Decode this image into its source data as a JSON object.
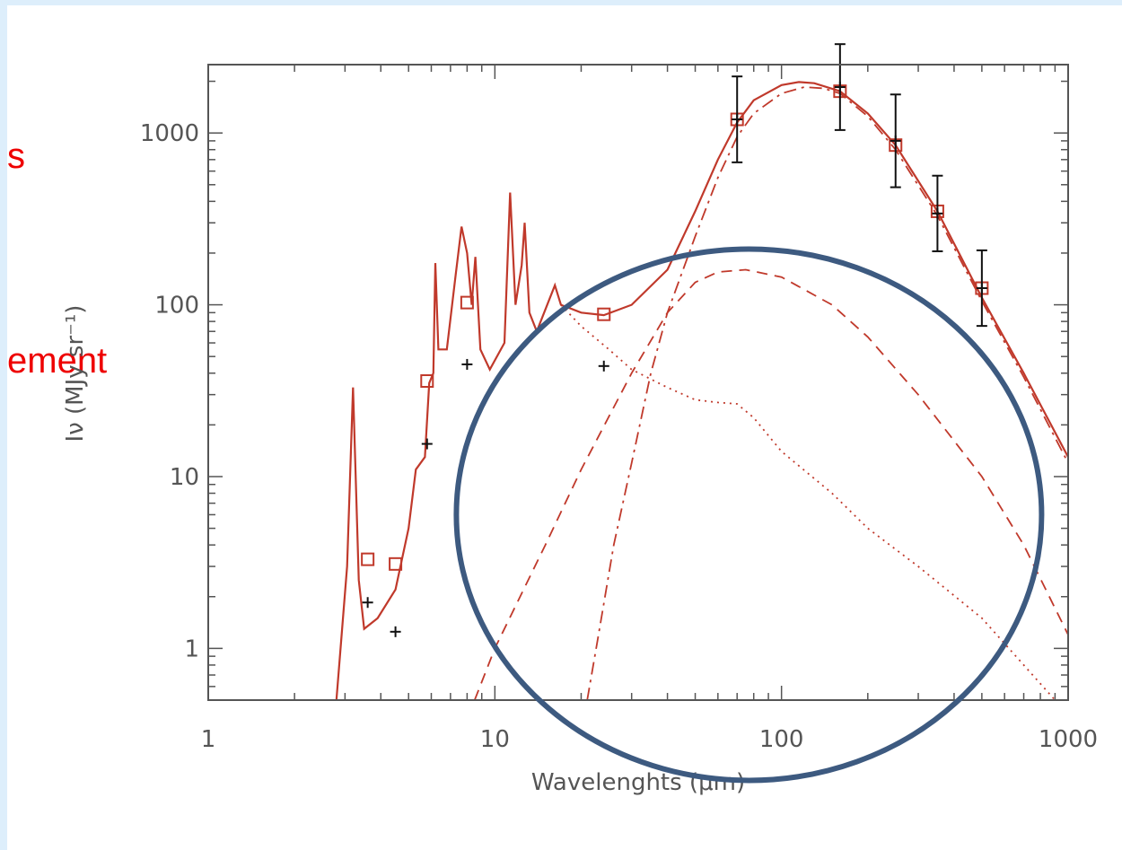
{
  "slide": {
    "text_fragment_1": "s",
    "text_fragment_2": "ement"
  },
  "chart_data": {
    "type": "line",
    "xlabel": "Wavelenghts (μm)",
    "ylabel": "Iν (MJy sr⁻¹)",
    "x_scale": "log",
    "y_scale": "log",
    "xlim": [
      1,
      1000
    ],
    "ylim": [
      0.5,
      2500
    ],
    "x_ticks": [
      {
        "value": 1,
        "label": "1"
      },
      {
        "value": 10,
        "label": "10"
      },
      {
        "value": 100,
        "label": "100"
      },
      {
        "value": 1000,
        "label": "1000"
      }
    ],
    "y_ticks": [
      {
        "value": 1,
        "label": "1"
      },
      {
        "value": 10,
        "label": "10"
      },
      {
        "value": 100,
        "label": "100"
      },
      {
        "value": 1000,
        "label": "1000"
      }
    ],
    "colors": {
      "model": "#c0392b",
      "observed": "#111111",
      "highlight_circle": "#3d5a80",
      "axes": "#555555"
    },
    "series": [
      {
        "style": "solid",
        "points": [
          [
            2.8,
            0.5
          ],
          [
            3.05,
            3
          ],
          [
            3.2,
            33
          ],
          [
            3.35,
            2.5
          ],
          [
            3.5,
            1.3
          ],
          [
            3.9,
            1.5
          ],
          [
            4.5,
            2.2
          ],
          [
            5,
            5
          ],
          [
            5.3,
            11
          ],
          [
            5.7,
            13
          ],
          [
            5.9,
            35
          ],
          [
            6.1,
            40
          ],
          [
            6.2,
            175
          ],
          [
            6.35,
            55
          ],
          [
            6.8,
            55
          ],
          [
            7.3,
            150
          ],
          [
            7.65,
            285
          ],
          [
            8.0,
            200
          ],
          [
            8.3,
            100
          ],
          [
            8.55,
            190
          ],
          [
            8.9,
            55
          ],
          [
            9.6,
            42
          ],
          [
            10.8,
            60
          ],
          [
            11.3,
            450
          ],
          [
            11.8,
            100
          ],
          [
            12.4,
            170
          ],
          [
            12.7,
            300
          ],
          [
            13.2,
            90
          ],
          [
            14,
            70
          ],
          [
            16.2,
            130
          ],
          [
            17,
            100
          ],
          [
            20,
            90
          ],
          [
            24,
            87
          ],
          [
            30,
            100
          ],
          [
            40,
            160
          ],
          [
            50,
            350
          ],
          [
            60,
            700
          ],
          [
            70,
            1150
          ],
          [
            80,
            1550
          ],
          [
            100,
            1900
          ],
          [
            115,
            1980
          ],
          [
            130,
            1950
          ],
          [
            160,
            1750
          ],
          [
            200,
            1300
          ],
          [
            250,
            850
          ],
          [
            350,
            350
          ],
          [
            500,
            110
          ],
          [
            700,
            40
          ],
          [
            1000,
            13
          ]
        ]
      },
      {
        "style": "dotted",
        "points": [
          [
            17,
            100
          ],
          [
            20,
            75
          ],
          [
            25,
            55
          ],
          [
            30,
            42
          ],
          [
            40,
            33
          ],
          [
            50,
            28
          ],
          [
            60,
            27
          ],
          [
            70,
            26.5
          ],
          [
            80,
            22
          ],
          [
            100,
            14
          ],
          [
            150,
            8
          ],
          [
            200,
            5
          ],
          [
            300,
            3
          ],
          [
            500,
            1.5
          ],
          [
            700,
            0.8
          ],
          [
            900,
            0.5
          ]
        ]
      },
      {
        "style": "dashed",
        "points": [
          [
            8.5,
            0.5
          ],
          [
            10,
            1
          ],
          [
            15,
            4
          ],
          [
            20,
            11
          ],
          [
            30,
            40
          ],
          [
            40,
            90
          ],
          [
            50,
            135
          ],
          [
            60,
            155
          ],
          [
            75,
            160
          ],
          [
            100,
            145
          ],
          [
            150,
            100
          ],
          [
            200,
            65
          ],
          [
            300,
            30
          ],
          [
            500,
            10
          ],
          [
            700,
            4
          ],
          [
            1000,
            1.2
          ]
        ]
      },
      {
        "style": "dashdot",
        "points": [
          [
            21,
            0.5
          ],
          [
            23,
            1.2
          ],
          [
            26,
            4
          ],
          [
            30,
            12
          ],
          [
            35,
            40
          ],
          [
            40,
            90
          ],
          [
            50,
            250
          ],
          [
            60,
            550
          ],
          [
            70,
            950
          ],
          [
            80,
            1300
          ],
          [
            100,
            1700
          ],
          [
            120,
            1850
          ],
          [
            140,
            1820
          ],
          [
            160,
            1700
          ],
          [
            200,
            1250
          ],
          [
            250,
            800
          ],
          [
            350,
            330
          ],
          [
            500,
            105
          ],
          [
            700,
            38
          ],
          [
            1000,
            12
          ]
        ]
      }
    ],
    "model_points": [
      {
        "x": 3.6,
        "y": 3.3
      },
      {
        "x": 4.5,
        "y": 3.1
      },
      {
        "x": 5.8,
        "y": 36
      },
      {
        "x": 8.0,
        "y": 103
      },
      {
        "x": 24,
        "y": 88
      },
      {
        "x": 70,
        "y": 1200
      },
      {
        "x": 160,
        "y": 1750
      },
      {
        "x": 250,
        "y": 850
      },
      {
        "x": 350,
        "y": 350
      },
      {
        "x": 500,
        "y": 125
      }
    ],
    "observed_points": [
      {
        "x": 3.6,
        "y": 1.85,
        "err": 0
      },
      {
        "x": 4.5,
        "y": 1.25,
        "err": 0
      },
      {
        "x": 5.8,
        "y": 15.5,
        "err": 0
      },
      {
        "x": 8.0,
        "y": 45,
        "err": 0
      },
      {
        "x": 24,
        "y": 44,
        "err": 0
      },
      {
        "x": 70,
        "y": 1200,
        "err": 0.25
      },
      {
        "x": 160,
        "y": 1850,
        "err": 0.25
      },
      {
        "x": 250,
        "y": 900,
        "err": 0.27
      },
      {
        "x": 350,
        "y": 340,
        "err": 0.22
      },
      {
        "x": 500,
        "y": 125,
        "err": 0.22
      }
    ],
    "annotation": {
      "shape": "ellipse",
      "center_x": 77,
      "center_y": 6
    }
  }
}
